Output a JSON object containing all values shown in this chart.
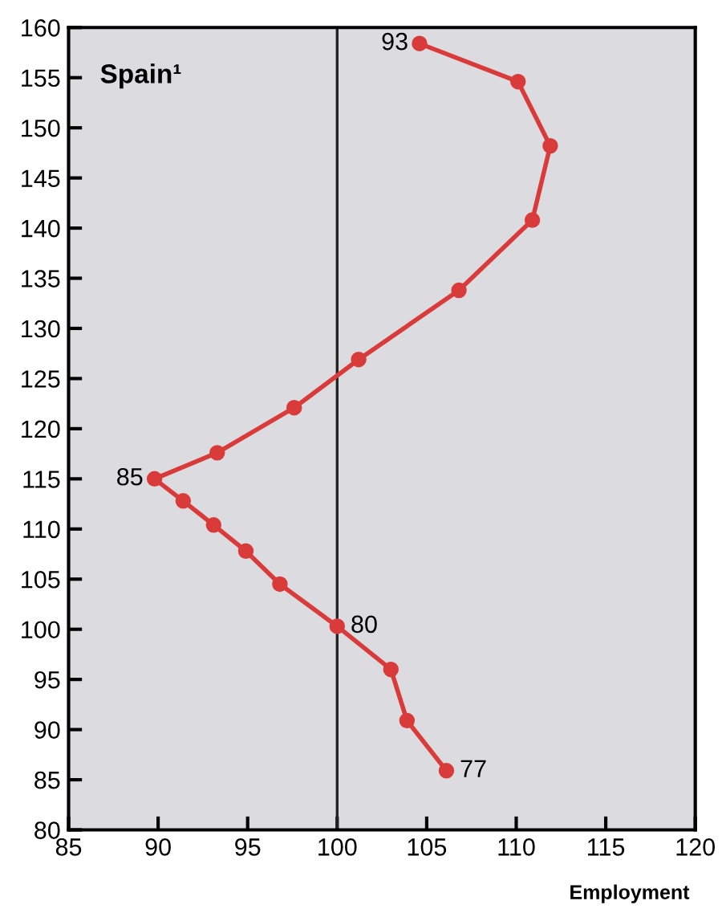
{
  "chart_data": {
    "type": "line",
    "title": "Spain¹",
    "xlabel": "Employment",
    "series": [
      {
        "color": "#d93a3a",
        "x": [
          106.1,
          103.9,
          103.0,
          100.0,
          96.8,
          94.9,
          93.1,
          91.4,
          89.8,
          93.3,
          97.6,
          101.2,
          106.8,
          110.9,
          111.9,
          110.1,
          104.6
        ],
        "values": [
          85.9,
          90.9,
          96.0,
          100.3,
          104.5,
          107.8,
          110.4,
          112.8,
          115.0,
          117.6,
          122.1,
          126.9,
          133.8,
          140.8,
          148.2,
          154.6,
          158.4
        ]
      }
    ],
    "xlim": [
      85,
      120
    ],
    "xticks": [
      85,
      90,
      95,
      100,
      105,
      110,
      115,
      120
    ],
    "ylim": [
      80,
      160
    ],
    "yticks": [
      80,
      85,
      90,
      95,
      100,
      105,
      110,
      115,
      120,
      125,
      130,
      135,
      140,
      145,
      150,
      155,
      160
    ],
    "ref_lines": [
      {
        "axis": "x",
        "value": 100,
        "color": "#222222"
      }
    ],
    "annotations": [
      {
        "text": "77",
        "x": 106.1,
        "y": 85.9
      },
      {
        "text": "80",
        "x": 100.0,
        "y": 100.3
      },
      {
        "text": "85",
        "x": 89.8,
        "y": 115.0
      },
      {
        "text": "93",
        "x": 104.6,
        "y": 158.4
      }
    ],
    "marker": "circle",
    "line_style": "solid",
    "grid": false,
    "legend": false
  }
}
